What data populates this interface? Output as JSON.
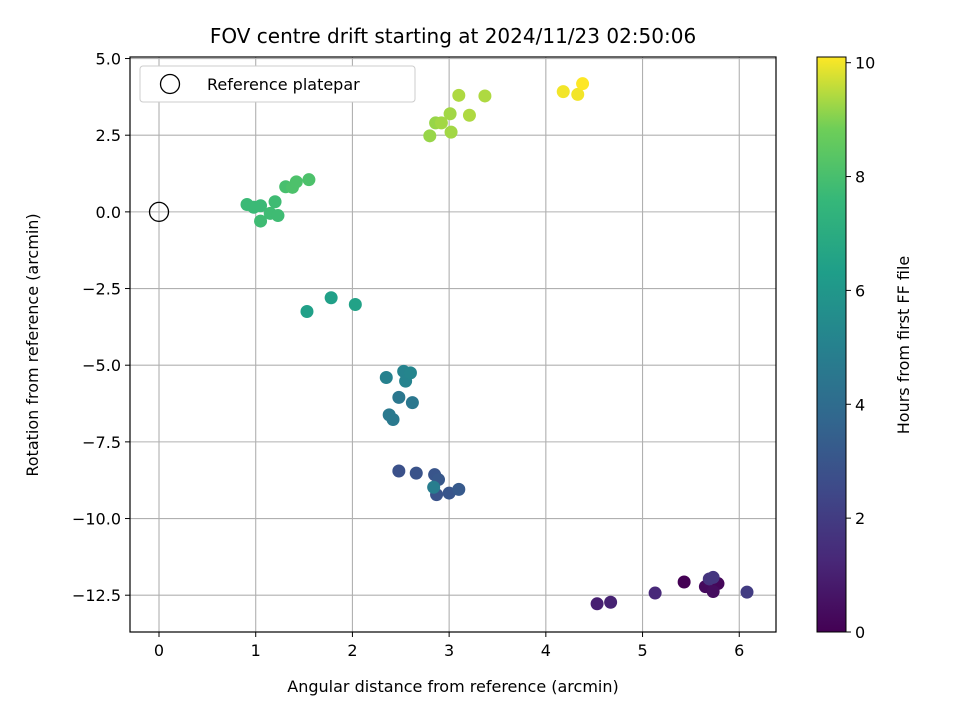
{
  "chart_data": {
    "type": "scatter",
    "title": "FOV centre drift starting at 2024/11/23 02:50:06",
    "xlabel": "Angular distance from reference (arcmin)",
    "ylabel": "Rotation from reference (arcmin)",
    "xlim": [
      -0.3,
      6.38
    ],
    "ylim": [
      -13.7,
      5.05
    ],
    "xticks": [
      0,
      1,
      2,
      3,
      4,
      5,
      6
    ],
    "yticks": [
      5.0,
      2.5,
      0.0,
      -2.5,
      -5.0,
      -7.5,
      -10.0,
      -12.5
    ],
    "xtick_labels": [
      "0",
      "1",
      "2",
      "3",
      "4",
      "5",
      "6"
    ],
    "ytick_labels": [
      "5.0",
      "2.5",
      "0.0",
      "−2.5",
      "−5.0",
      "−7.5",
      "−10.0",
      "−12.5"
    ],
    "grid": true,
    "legend": {
      "position": "top-left",
      "entries": [
        "Reference platepar"
      ]
    },
    "reference_point": {
      "x": 0,
      "y": 0
    },
    "colorbar": {
      "label": "Hours from first FF file",
      "colormap": "viridis",
      "range": [
        0,
        10.1
      ],
      "ticks": [
        0,
        2,
        4,
        6,
        8,
        10
      ],
      "tick_labels": [
        "0",
        "2",
        "4",
        "6",
        "8",
        "10"
      ]
    },
    "points": [
      {
        "x": 5.43,
        "y": -12.07,
        "c": 0.0
      },
      {
        "x": 5.78,
        "y": -12.12,
        "c": 0.2
      },
      {
        "x": 5.65,
        "y": -12.22,
        "c": 0.3
      },
      {
        "x": 5.73,
        "y": -12.38,
        "c": 0.4
      },
      {
        "x": 4.53,
        "y": -12.78,
        "c": 1.0
      },
      {
        "x": 4.67,
        "y": -12.73,
        "c": 1.1
      },
      {
        "x": 5.13,
        "y": -12.43,
        "c": 1.3
      },
      {
        "x": 5.69,
        "y": -11.97,
        "c": 1.7
      },
      {
        "x": 5.73,
        "y": -11.92,
        "c": 1.8
      },
      {
        "x": 6.08,
        "y": -12.4,
        "c": 2.0
      },
      {
        "x": 2.48,
        "y": -8.45,
        "c": 2.8
      },
      {
        "x": 2.66,
        "y": -8.52,
        "c": 2.9
      },
      {
        "x": 2.85,
        "y": -8.57,
        "c": 3.0
      },
      {
        "x": 2.89,
        "y": -8.73,
        "c": 3.1
      },
      {
        "x": 2.87,
        "y": -9.22,
        "c": 2.9
      },
      {
        "x": 3.0,
        "y": -9.17,
        "c": 3.0
      },
      {
        "x": 3.1,
        "y": -9.05,
        "c": 3.2
      },
      {
        "x": 2.84,
        "y": -8.98,
        "c": 4.8
      },
      {
        "x": 2.48,
        "y": -6.05,
        "c": 4.5
      },
      {
        "x": 2.62,
        "y": -6.22,
        "c": 4.5
      },
      {
        "x": 2.38,
        "y": -6.62,
        "c": 4.6
      },
      {
        "x": 2.42,
        "y": -6.77,
        "c": 4.6
      },
      {
        "x": 2.35,
        "y": -5.4,
        "c": 5.0
      },
      {
        "x": 2.53,
        "y": -5.2,
        "c": 5.1
      },
      {
        "x": 2.55,
        "y": -5.52,
        "c": 5.1
      },
      {
        "x": 2.6,
        "y": -5.25,
        "c": 5.2
      },
      {
        "x": 1.53,
        "y": -3.25,
        "c": 6.4
      },
      {
        "x": 1.78,
        "y": -2.8,
        "c": 6.4
      },
      {
        "x": 2.03,
        "y": -3.02,
        "c": 6.5
      },
      {
        "x": 0.91,
        "y": 0.24,
        "c": 7.7
      },
      {
        "x": 0.98,
        "y": 0.15,
        "c": 7.7
      },
      {
        "x": 1.05,
        "y": 0.2,
        "c": 7.7
      },
      {
        "x": 1.05,
        "y": -0.3,
        "c": 7.8
      },
      {
        "x": 1.15,
        "y": -0.05,
        "c": 7.8
      },
      {
        "x": 1.2,
        "y": 0.33,
        "c": 7.8
      },
      {
        "x": 1.23,
        "y": -0.12,
        "c": 7.8
      },
      {
        "x": 1.31,
        "y": 0.82,
        "c": 8.0
      },
      {
        "x": 1.38,
        "y": 0.8,
        "c": 8.1
      },
      {
        "x": 1.42,
        "y": 0.98,
        "c": 8.1
      },
      {
        "x": 1.55,
        "y": 1.05,
        "c": 8.1
      },
      {
        "x": 2.8,
        "y": 2.48,
        "c": 9.2
      },
      {
        "x": 2.86,
        "y": 2.9,
        "c": 9.2
      },
      {
        "x": 2.92,
        "y": 2.9,
        "c": 9.3
      },
      {
        "x": 3.02,
        "y": 2.6,
        "c": 9.3
      },
      {
        "x": 3.01,
        "y": 3.2,
        "c": 9.3
      },
      {
        "x": 3.1,
        "y": 3.8,
        "c": 9.4
      },
      {
        "x": 3.21,
        "y": 3.15,
        "c": 9.4
      },
      {
        "x": 3.37,
        "y": 3.78,
        "c": 9.4
      },
      {
        "x": 4.18,
        "y": 3.92,
        "c": 10.0
      },
      {
        "x": 4.33,
        "y": 3.83,
        "c": 10.0
      },
      {
        "x": 4.38,
        "y": 4.18,
        "c": 10.1
      }
    ]
  }
}
